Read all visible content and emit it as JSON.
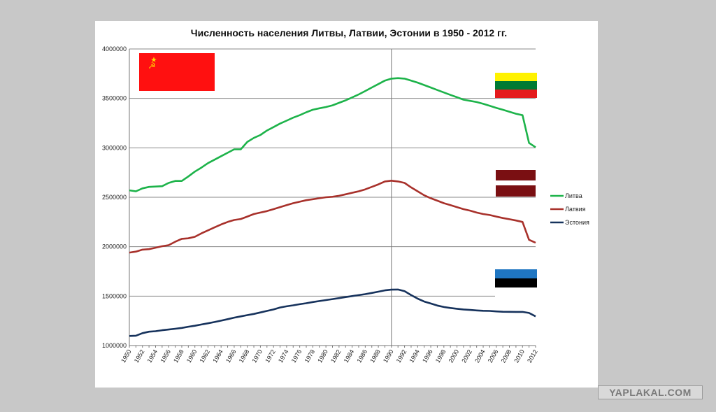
{
  "watermark": "YAPLAKAL.COM",
  "chart_data": {
    "type": "line",
    "title": "Численность населения Литвы, Латвии, Эстонии в 1950 - 2012 гг.",
    "xlabel": "",
    "ylabel": "",
    "ylim": [
      1000000,
      4000000
    ],
    "yticks": [
      "1000000",
      "1500000",
      "2000000",
      "2500000",
      "3000000",
      "3500000",
      "4000000"
    ],
    "x": [
      1950,
      1951,
      1952,
      1953,
      1954,
      1955,
      1956,
      1957,
      1958,
      1959,
      1960,
      1961,
      1962,
      1963,
      1964,
      1965,
      1966,
      1967,
      1968,
      1969,
      1970,
      1971,
      1972,
      1973,
      1974,
      1975,
      1976,
      1977,
      1978,
      1979,
      1980,
      1981,
      1982,
      1983,
      1984,
      1985,
      1986,
      1987,
      1988,
      1989,
      1990,
      1991,
      1992,
      1993,
      1994,
      1995,
      1996,
      1997,
      1998,
      1999,
      2000,
      2001,
      2002,
      2003,
      2004,
      2005,
      2006,
      2007,
      2008,
      2009,
      2010,
      2011,
      2012
    ],
    "xticks": [
      "1950",
      "1952",
      "1954",
      "1956",
      "1958",
      "1960",
      "1962",
      "1964",
      "1966",
      "1968",
      "1970",
      "1972",
      "1974",
      "1976",
      "1978",
      "1980",
      "1982",
      "1984",
      "1986",
      "1988",
      "1990",
      "1992",
      "1994",
      "1996",
      "1998",
      "2000",
      "2002",
      "2004",
      "2006",
      "2008",
      "2010",
      "2012"
    ],
    "marker_year": 1990,
    "legend_position": "right",
    "grid": "horizontal",
    "colors": {
      "lithuania": "#1db34a",
      "latvia": "#a8312b",
      "estonia": "#16325c"
    },
    "series": [
      {
        "name": "Литва",
        "color": "#1db34a",
        "values": [
          2570000,
          2560000,
          2590000,
          2605000,
          2608000,
          2612000,
          2645000,
          2665000,
          2665000,
          2710000,
          2760000,
          2800000,
          2845000,
          2880000,
          2915000,
          2950000,
          2985000,
          2985000,
          3060000,
          3100000,
          3130000,
          3175000,
          3210000,
          3245000,
          3275000,
          3305000,
          3330000,
          3360000,
          3385000,
          3400000,
          3413000,
          3430000,
          3455000,
          3480000,
          3510000,
          3540000,
          3575000,
          3610000,
          3645000,
          3680000,
          3700000,
          3705000,
          3700000,
          3680000,
          3660000,
          3635000,
          3610000,
          3585000,
          3560000,
          3535000,
          3512000,
          3487000,
          3475000,
          3463000,
          3445000,
          3425000,
          3404000,
          3385000,
          3365000,
          3345000,
          3330000,
          3050000,
          3005000
        ]
      },
      {
        "name": "Латвия",
        "color": "#a8312b",
        "values": [
          1940000,
          1950000,
          1970000,
          1975000,
          1990000,
          2005000,
          2015000,
          2050000,
          2080000,
          2085000,
          2100000,
          2135000,
          2165000,
          2195000,
          2225000,
          2250000,
          2270000,
          2280000,
          2305000,
          2330000,
          2345000,
          2360000,
          2380000,
          2400000,
          2420000,
          2440000,
          2455000,
          2470000,
          2480000,
          2490000,
          2500000,
          2505000,
          2515000,
          2530000,
          2545000,
          2560000,
          2580000,
          2605000,
          2630000,
          2660000,
          2668000,
          2660000,
          2645000,
          2600000,
          2560000,
          2520000,
          2490000,
          2465000,
          2440000,
          2420000,
          2400000,
          2380000,
          2365000,
          2345000,
          2330000,
          2320000,
          2305000,
          2290000,
          2278000,
          2265000,
          2250000,
          2070000,
          2040000
        ]
      },
      {
        "name": "Эстония",
        "color": "#16325c",
        "values": [
          1097000,
          1100000,
          1125000,
          1140000,
          1145000,
          1155000,
          1162000,
          1170000,
          1178000,
          1190000,
          1200000,
          1213000,
          1225000,
          1238000,
          1252000,
          1267000,
          1282000,
          1295000,
          1308000,
          1320000,
          1335000,
          1350000,
          1365000,
          1385000,
          1397000,
          1407000,
          1418000,
          1428000,
          1440000,
          1450000,
          1460000,
          1470000,
          1480000,
          1490000,
          1500000,
          1510000,
          1520000,
          1532000,
          1545000,
          1558000,
          1565000,
          1567000,
          1550000,
          1510000,
          1475000,
          1445000,
          1425000,
          1405000,
          1390000,
          1380000,
          1372000,
          1365000,
          1360000,
          1355000,
          1352000,
          1350000,
          1345000,
          1342000,
          1341000,
          1340000,
          1340000,
          1330000,
          1295000
        ]
      }
    ]
  }
}
